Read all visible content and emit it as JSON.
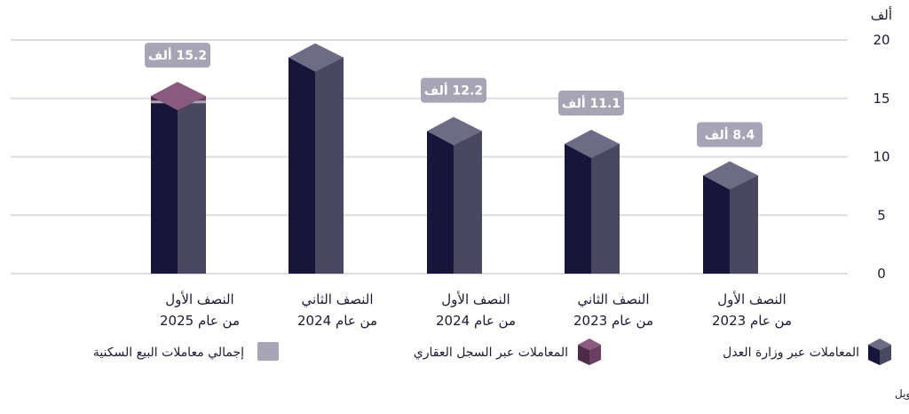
{
  "chart_data": {
    "type": "bar",
    "unit_label": "ألف",
    "ylim": [
      0,
      20
    ],
    "yticks": [
      0,
      5,
      10,
      15,
      20
    ],
    "grid": true,
    "categories": [
      {
        "line1": "النصف الأول",
        "line2": "من عام 2023"
      },
      {
        "line1": "النصف الثاني",
        "line2": "من عام 2023"
      },
      {
        "line1": "النصف الأول",
        "line2": "من عام 2024"
      },
      {
        "line1": "النصف الثاني",
        "line2": "من عام 2024"
      },
      {
        "line1": "النصف الأول",
        "line2": "من عام 2025"
      }
    ],
    "series": [
      {
        "name": "المعاملات عبر وزارة العدل",
        "values": [
          8.4,
          11.1,
          12.2,
          18.5,
          14.7
        ]
      },
      {
        "name": "المعاملات عبر السجل العقاري",
        "values": [
          0,
          0,
          0,
          0,
          0.5
        ]
      },
      {
        "name": "إجمالي معاملات البيع السكنية",
        "values": [
          8.4,
          11.1,
          12.2,
          18.5,
          15.2
        ]
      }
    ],
    "data_labels": [
      "8.4 ألف",
      "11.1 ألف",
      "12.2 ألف",
      "",
      "15.2 ألف"
    ],
    "colors": {
      "moj_front": "#17163a",
      "moj_side": "#4a4860",
      "moj_top": "#6e6c85",
      "registry_front": "#4f2a47",
      "registry_side": "#6b3f62",
      "registry_top": "#8a5a7f",
      "total": "#a7a5b5",
      "grid": "#dcdce2"
    },
    "legend_position": "bottom"
  },
  "source": "المصدر: وزارة العدل، السجل العقاري، منصة بسيطة، كافنديش ماكسويل"
}
